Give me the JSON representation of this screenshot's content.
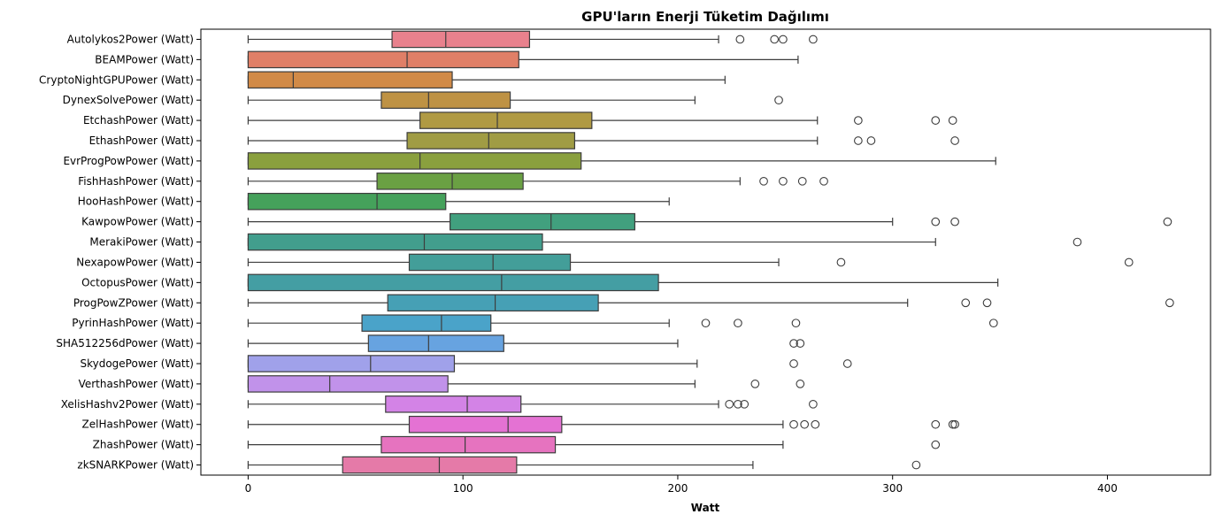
{
  "chart_data": {
    "type": "boxplot",
    "orientation": "horizontal",
    "title": "GPU'ların Enerji Tüketim Dağılımı",
    "xlabel": "Watt",
    "ylabel": "",
    "xlim": [
      -22,
      448
    ],
    "xticks": [
      0,
      100,
      200,
      300,
      400
    ],
    "grid": false,
    "series": [
      {
        "name": "Autolykos2Power (Watt)",
        "color": "#e8818d",
        "min": 0,
        "q1": 67,
        "median": 92,
        "q3": 131,
        "max": 219,
        "outliers": [
          229,
          245,
          249,
          263
        ]
      },
      {
        "name": "BEAMPower (Watt)",
        "color": "#e07f67",
        "min": 0,
        "q1": 0,
        "median": 74,
        "q3": 126,
        "max": 256,
        "outliers": []
      },
      {
        "name": "CryptoNightGPUPower (Watt)",
        "color": "#d18a47",
        "min": 0,
        "q1": 0,
        "median": 21,
        "q3": 95,
        "max": 222,
        "outliers": []
      },
      {
        "name": "DynexSolvePower (Watt)",
        "color": "#be9244",
        "min": 0,
        "q1": 62,
        "median": 84,
        "q3": 122,
        "max": 208,
        "outliers": [
          247
        ]
      },
      {
        "name": "EtchashPower (Watt)",
        "color": "#b09a43",
        "min": 0,
        "q1": 80,
        "median": 116,
        "q3": 160,
        "max": 265,
        "outliers": [
          284,
          320,
          328
        ]
      },
      {
        "name": "EthashPower (Watt)",
        "color": "#a09c44",
        "min": 0,
        "q1": 74,
        "median": 112,
        "q3": 152,
        "max": 265,
        "outliers": [
          284,
          290,
          329
        ]
      },
      {
        "name": "EvrProgPowPower (Watt)",
        "color": "#8aa03e",
        "min": 0,
        "q1": 0,
        "median": 80,
        "q3": 155,
        "max": 348,
        "outliers": []
      },
      {
        "name": "FishHashPower (Watt)",
        "color": "#6aa043",
        "min": 0,
        "q1": 60,
        "median": 95,
        "q3": 128,
        "max": 229,
        "outliers": [
          240,
          249,
          258,
          268
        ]
      },
      {
        "name": "HooHashPower (Watt)",
        "color": "#45a15b",
        "min": 0,
        "q1": 0,
        "median": 60,
        "q3": 92,
        "max": 196,
        "outliers": []
      },
      {
        "name": "KawpowPower (Watt)",
        "color": "#41a07e",
        "min": 0,
        "q1": 94,
        "median": 141,
        "q3": 180,
        "max": 300,
        "outliers": [
          320,
          329,
          428
        ]
      },
      {
        "name": "MerakiPower (Watt)",
        "color": "#429e8d",
        "min": 0,
        "q1": 0,
        "median": 82,
        "q3": 137,
        "max": 320,
        "outliers": [
          386
        ]
      },
      {
        "name": "NexapowPower (Watt)",
        "color": "#439e99",
        "min": 0,
        "q1": 75,
        "median": 114,
        "q3": 150,
        "max": 247,
        "outliers": [
          276,
          410
        ]
      },
      {
        "name": "OctopusPower (Watt)",
        "color": "#449ea3",
        "min": 0,
        "q1": 0,
        "median": 118,
        "q3": 191,
        "max": 349,
        "outliers": []
      },
      {
        "name": "ProgPowZPower (Watt)",
        "color": "#46a0b5",
        "min": 0,
        "q1": 65,
        "median": 115,
        "q3": 163,
        "max": 307,
        "outliers": [
          334,
          344,
          429
        ]
      },
      {
        "name": "PyrinHashPower (Watt)",
        "color": "#4aa3c9",
        "min": 0,
        "q1": 53,
        "median": 90,
        "q3": 113,
        "max": 196,
        "outliers": [
          213,
          228,
          255,
          347
        ]
      },
      {
        "name": "SHA512256dPower (Watt)",
        "color": "#67a3e0",
        "min": 0,
        "q1": 56,
        "median": 84,
        "q3": 119,
        "max": 200,
        "outliers": [
          254,
          257
        ]
      },
      {
        "name": "SkydogePower (Watt)",
        "color": "#a0a1ea",
        "min": 0,
        "q1": 0,
        "median": 57,
        "q3": 96,
        "max": 209,
        "outliers": [
          254,
          279
        ]
      },
      {
        "name": "VerthashPower (Watt)",
        "color": "#c192ea",
        "min": 0,
        "q1": 0,
        "median": 38,
        "q3": 93,
        "max": 208,
        "outliers": [
          236,
          257
        ]
      },
      {
        "name": "XelisHashv2Power (Watt)",
        "color": "#d383e6",
        "min": 0,
        "q1": 64,
        "median": 102,
        "q3": 127,
        "max": 219,
        "outliers": [
          224,
          228,
          231,
          263
        ]
      },
      {
        "name": "ZelHashPower (Watt)",
        "color": "#e472d3",
        "min": 0,
        "q1": 75,
        "median": 121,
        "q3": 146,
        "max": 249,
        "outliers": [
          254,
          259,
          264,
          320,
          328,
          329
        ]
      },
      {
        "name": "ZhashPower (Watt)",
        "color": "#e673bf",
        "min": 0,
        "q1": 62,
        "median": 101,
        "q3": 143,
        "max": 249,
        "outliers": [
          320
        ]
      },
      {
        "name": "zkSNARKPower (Watt)",
        "color": "#e57aa8",
        "min": 0,
        "q1": 44,
        "median": 89,
        "q3": 125,
        "max": 235,
        "outliers": [
          311
        ]
      }
    ]
  }
}
